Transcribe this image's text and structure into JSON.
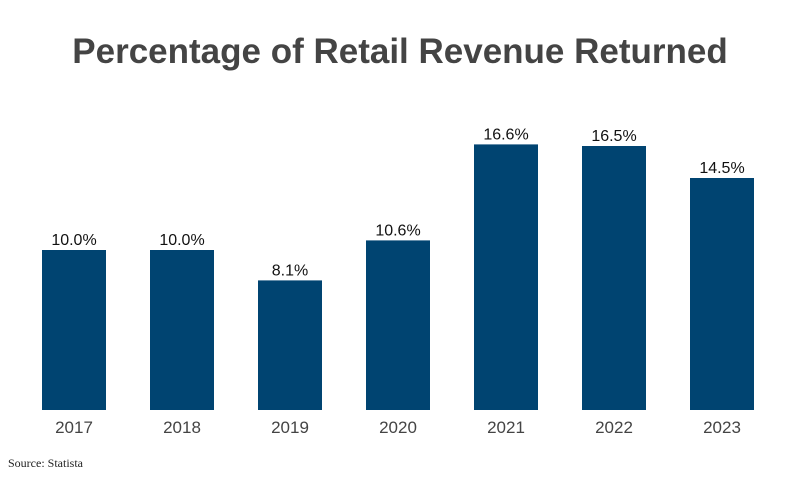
{
  "chart_data": {
    "type": "bar",
    "title": "Percentage of Retail Revenue Returned",
    "categories": [
      "2017",
      "2018",
      "2019",
      "2020",
      "2021",
      "2022",
      "2023"
    ],
    "values": [
      10.0,
      10.0,
      8.1,
      10.6,
      16.6,
      16.5,
      14.5
    ],
    "data_labels": [
      "10.0%",
      "10.0%",
      "8.1%",
      "10.6%",
      "16.6%",
      "16.5%",
      "14.5%"
    ],
    "xlabel": "",
    "ylabel": "",
    "ylim": [
      0,
      17
    ],
    "grid": false,
    "bar_color": "#004471"
  },
  "source": "Source: Statista"
}
